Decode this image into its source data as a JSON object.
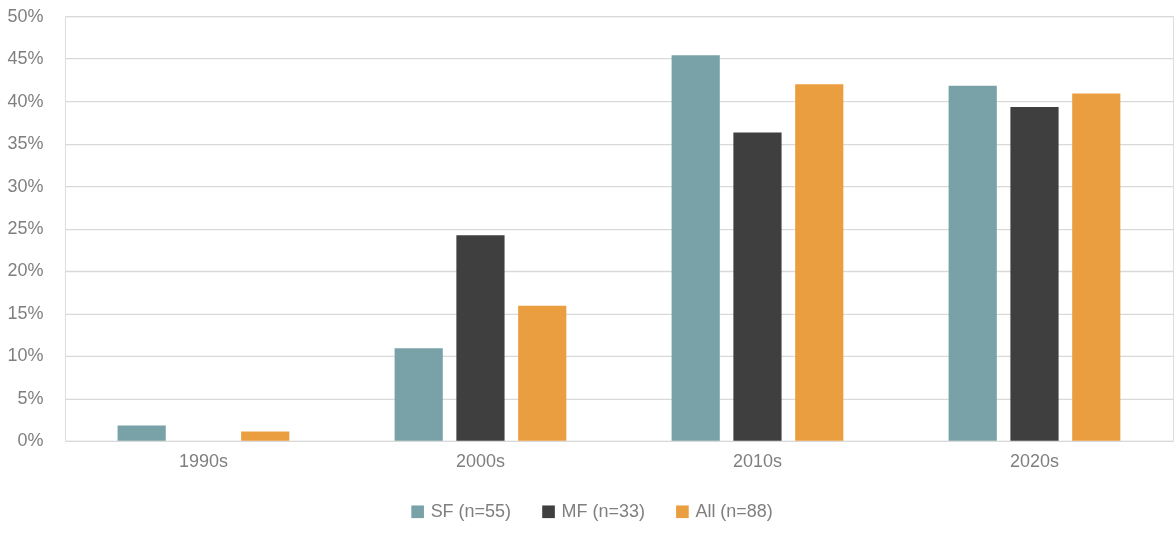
{
  "chart_data": {
    "type": "bar",
    "categories": [
      "1990s",
      "2000s",
      "2010s",
      "2020s"
    ],
    "series": [
      {
        "name": "SF (n=55)",
        "color": "#78a2a7",
        "values": [
          1.8,
          10.9,
          45.4,
          41.8
        ]
      },
      {
        "name": "MF (n=33)",
        "color": "#3f3f3f",
        "values": [
          0,
          24.2,
          36.3,
          39.3
        ]
      },
      {
        "name": "All (n=88)",
        "color": "#eb9e3f",
        "values": [
          1.1,
          15.9,
          42.0,
          40.9
        ]
      }
    ],
    "ylim": [
      0,
      50
    ],
    "yticks": [
      {
        "value": 0,
        "label": "0%"
      },
      {
        "value": 5,
        "label": "5%"
      },
      {
        "value": 10,
        "label": "10%"
      },
      {
        "value": 15,
        "label": "15%"
      },
      {
        "value": 20,
        "label": "20%"
      },
      {
        "value": 25,
        "label": "25%"
      },
      {
        "value": 30,
        "label": "30%"
      },
      {
        "value": 35,
        "label": "35%"
      },
      {
        "value": 40,
        "label": "40%"
      },
      {
        "value": 45,
        "label": "45%"
      },
      {
        "value": 50,
        "label": "50%"
      }
    ],
    "grid": "y",
    "legend": "bottom"
  }
}
